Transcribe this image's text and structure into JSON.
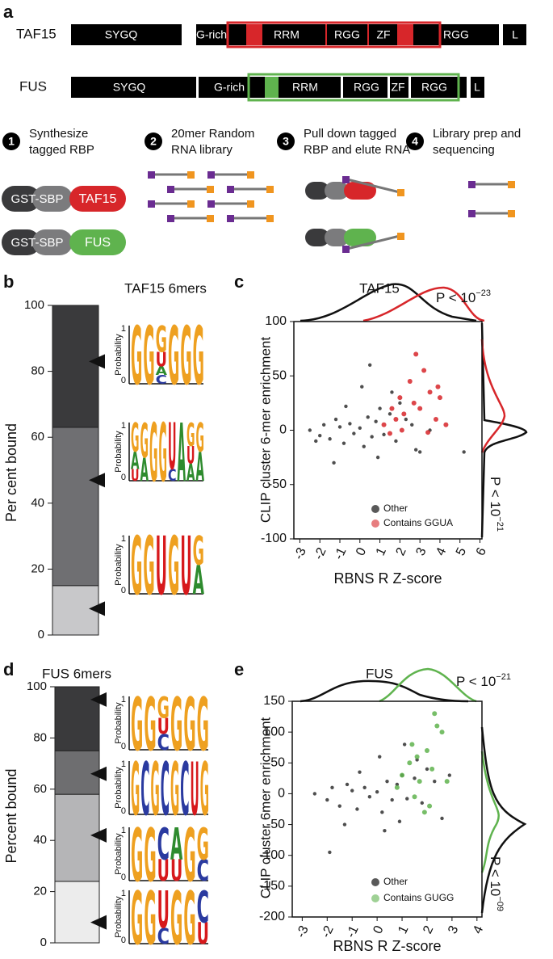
{
  "diagram": {
    "panel": "a",
    "proteins": [
      {
        "name": "TAF15",
        "domains": [
          "SYGQ",
          "G-rich",
          "RRM",
          "RGG",
          "ZF",
          "RGG",
          "L"
        ]
      },
      {
        "name": "FUS",
        "domains": [
          "SYGQ",
          "G-rich",
          "RRM",
          "RGG",
          "ZF",
          "RGG",
          "L"
        ]
      }
    ],
    "steps": [
      {
        "number": "1",
        "lines": [
          "Synthesize",
          "tagged RBP"
        ]
      },
      {
        "number": "2",
        "lines": [
          "20mer Random",
          "RNA library"
        ]
      },
      {
        "number": "3",
        "lines": [
          "Pull down tagged",
          "RBP and elute RNA"
        ]
      },
      {
        "number": "4",
        "lines": [
          "Library prep and",
          "sequencing"
        ]
      }
    ],
    "constructs": {
      "tag": "GST-SBP",
      "proteins": [
        "TAF15",
        "FUS"
      ]
    }
  },
  "logo_axis": {
    "label": "Probability",
    "ticks": [
      0,
      1
    ]
  },
  "chart_data": [
    {
      "type": "stacked_bar",
      "panel": "b",
      "title": "TAF15 6mers",
      "ylabel": "Per cent bound",
      "ylim": [
        0,
        100
      ],
      "yticks": [
        0,
        20,
        40,
        60,
        80,
        100
      ],
      "series": [
        {
          "color": "#c8c8ca",
          "values": [
            15
          ]
        },
        {
          "color": "#6f6f72",
          "values": [
            48
          ]
        },
        {
          "color": "#3a3a3c",
          "values": [
            37
          ]
        }
      ],
      "markers": [
        83,
        47,
        8
      ],
      "logos": [
        [
          [
            {
              "base": "G",
              "p": 1
            }
          ],
          [
            {
              "base": "G",
              "p": 1
            }
          ],
          [
            {
              "base": "G",
              "p": 0.45
            },
            {
              "base": "U",
              "p": 0.25
            },
            {
              "base": "A",
              "p": 0.15
            },
            {
              "base": "C",
              "p": 0.15
            }
          ],
          [
            {
              "base": "G",
              "p": 1
            }
          ],
          [
            {
              "base": "G",
              "p": 1
            }
          ],
          [
            {
              "base": "G",
              "p": 1
            }
          ]
        ],
        [
          [
            {
              "base": "G",
              "p": 0.5
            },
            {
              "base": "A",
              "p": 0.3
            },
            {
              "base": "U",
              "p": 0.2
            }
          ],
          [
            {
              "base": "G",
              "p": 0.6
            },
            {
              "base": "A",
              "p": 0.4
            }
          ],
          [
            {
              "base": "G",
              "p": 1
            }
          ],
          [
            {
              "base": "G",
              "p": 1
            }
          ],
          [
            {
              "base": "U",
              "p": 0.8
            },
            {
              "base": "C",
              "p": 0.2
            }
          ],
          [
            {
              "base": "A",
              "p": 1
            }
          ],
          [
            {
              "base": "G",
              "p": 0.4
            },
            {
              "base": "U",
              "p": 0.3
            },
            {
              "base": "A",
              "p": 0.3
            }
          ],
          [
            {
              "base": "G",
              "p": 0.5
            },
            {
              "base": "A",
              "p": 0.5
            }
          ]
        ],
        [
          [
            {
              "base": "G",
              "p": 1
            }
          ],
          [
            {
              "base": "G",
              "p": 1
            }
          ],
          [
            {
              "base": "U",
              "p": 1
            }
          ],
          [
            {
              "base": "G",
              "p": 1
            }
          ],
          [
            {
              "base": "U",
              "p": 1
            }
          ],
          [
            {
              "base": "G",
              "p": 0.5
            },
            {
              "base": "A",
              "p": 0.5
            }
          ]
        ]
      ]
    },
    {
      "type": "scatter",
      "panel": "c",
      "title": "TAF15",
      "xlabel": "RBNS R Z-score",
      "ylabel": "CLIP cluster 6-mer enrichment",
      "xlim": [
        -3.3,
        6.1
      ],
      "xticks": [
        -3,
        -2,
        -1,
        0,
        1,
        2,
        3,
        4,
        5,
        6
      ],
      "ylim": [
        -100,
        100
      ],
      "yticks": [
        -100,
        -50,
        0,
        50,
        100
      ],
      "series": [
        {
          "name": "Other",
          "color": "#222222",
          "x": [
            -2.5,
            -2,
            -1.8,
            -1.5,
            -1.2,
            -1,
            -0.8,
            -0.5,
            -0.3,
            0,
            0.2,
            0.4,
            0.6,
            0.8,
            1,
            1.2,
            1.5,
            1.8,
            2,
            2.3,
            2.6,
            3,
            3.5,
            -1.3,
            -0.7,
            0.1,
            0.9,
            1.6,
            2.8,
            5.2,
            0.5,
            -2.2
          ],
          "values": [
            0,
            -5,
            5,
            -8,
            10,
            3,
            -12,
            6,
            -3,
            2,
            -15,
            12,
            -6,
            8,
            20,
            -4,
            15,
            -10,
            25,
            10,
            5,
            -20,
            0,
            -30,
            22,
            40,
            -25,
            35,
            -18,
            -20,
            60,
            -10
          ]
        },
        {
          "name": "Contains GGUA",
          "color": "#d7262a",
          "x": [
            1.2,
            1.5,
            1.8,
            2,
            2.2,
            2.5,
            2.7,
            3,
            3.2,
            3.5,
            3.8,
            4,
            4.3,
            2.8,
            3.4,
            2.1,
            1.6,
            3.9
          ],
          "values": [
            5,
            -3,
            10,
            30,
            15,
            45,
            25,
            20,
            55,
            35,
            10,
            30,
            5,
            70,
            -2,
            0,
            20,
            40
          ]
        }
      ],
      "annotations": [
        {
          "text": "P < 10",
          "exponent": "−23"
        },
        {
          "text": "P < 10",
          "exponent": "−21"
        }
      ]
    },
    {
      "type": "stacked_bar",
      "panel": "d",
      "title": "FUS 6mers",
      "ylabel": "Percent bound",
      "ylim": [
        0,
        100
      ],
      "yticks": [
        0,
        20,
        40,
        60,
        80,
        100
      ],
      "series": [
        {
          "color": "#ececec",
          "values": [
            24
          ]
        },
        {
          "color": "#b5b5b7",
          "values": [
            34
          ]
        },
        {
          "color": "#6e6e70",
          "values": [
            17
          ]
        },
        {
          "color": "#3a3a3c",
          "values": [
            25
          ]
        }
      ],
      "markers": [
        95,
        66,
        42,
        8
      ],
      "logos": [
        [
          [
            {
              "base": "G",
              "p": 1
            }
          ],
          [
            {
              "base": "G",
              "p": 1
            }
          ],
          [
            {
              "base": "G",
              "p": 0.4
            },
            {
              "base": "U",
              "p": 0.3
            },
            {
              "base": "C",
              "p": 0.3
            }
          ],
          [
            {
              "base": "G",
              "p": 1
            }
          ],
          [
            {
              "base": "G",
              "p": 1
            }
          ],
          [
            {
              "base": "G",
              "p": 1
            }
          ]
        ],
        [
          [
            {
              "base": "G",
              "p": 1
            }
          ],
          [
            {
              "base": "C",
              "p": 1
            }
          ],
          [
            {
              "base": "G",
              "p": 1
            }
          ],
          [
            {
              "base": "C",
              "p": 1
            }
          ],
          [
            {
              "base": "G",
              "p": 1
            }
          ],
          [
            {
              "base": "C",
              "p": 1
            }
          ],
          [
            {
              "base": "U",
              "p": 1
            }
          ],
          [
            {
              "base": "G",
              "p": 1
            }
          ]
        ],
        [
          [
            {
              "base": "G",
              "p": 1
            }
          ],
          [
            {
              "base": "G",
              "p": 1
            }
          ],
          [
            {
              "base": "C",
              "p": 0.6
            },
            {
              "base": "U",
              "p": 0.4
            }
          ],
          [
            {
              "base": "A",
              "p": 0.6
            },
            {
              "base": "U",
              "p": 0.4
            }
          ],
          [
            {
              "base": "G",
              "p": 1
            }
          ],
          [
            {
              "base": "G",
              "p": 0.6
            },
            {
              "base": "C",
              "p": 0.4
            }
          ]
        ],
        [
          [
            {
              "base": "G",
              "p": 1
            }
          ],
          [
            {
              "base": "G",
              "p": 1
            }
          ],
          [
            {
              "base": "U",
              "p": 0.7
            },
            {
              "base": "C",
              "p": 0.3
            }
          ],
          [
            {
              "base": "G",
              "p": 1
            }
          ],
          [
            {
              "base": "G",
              "p": 1
            }
          ],
          [
            {
              "base": "C",
              "p": 0.6
            },
            {
              "base": "U",
              "p": 0.4
            }
          ]
        ]
      ]
    },
    {
      "type": "scatter",
      "panel": "e",
      "title": "FUS",
      "xlabel": "RBNS R Z-score",
      "ylabel": "CLIP cluster 6mer enrichment",
      "xlim": [
        -3.4,
        4.2
      ],
      "xticks": [
        -3,
        -2,
        -1,
        0,
        1,
        2,
        3,
        4
      ],
      "ylim": [
        -200,
        150
      ],
      "yticks": [
        -200,
        -150,
        -100,
        -50,
        0,
        50,
        100,
        150
      ],
      "series": [
        {
          "name": "Other",
          "color": "#222222",
          "x": [
            -2.5,
            -2,
            -1.8,
            -1.5,
            -1.2,
            -1,
            -0.8,
            -0.5,
            -0.3,
            0,
            0.2,
            0.4,
            0.6,
            0.8,
            1,
            1.2,
            1.5,
            1.8,
            2,
            2.3,
            2.6,
            -1.3,
            -0.7,
            0.1,
            0.9,
            1.6,
            -1.9,
            0.3,
            1.1,
            2.9
          ],
          "values": [
            0,
            -10,
            10,
            -20,
            15,
            5,
            -25,
            10,
            -5,
            3,
            -30,
            20,
            -10,
            15,
            30,
            -8,
            25,
            -15,
            40,
            20,
            -40,
            -50,
            35,
            60,
            -45,
            55,
            -95,
            -60,
            80,
            30
          ]
        },
        {
          "name": "Contains GUGG",
          "color": "#5fb34e",
          "x": [
            0.8,
            1,
            1.3,
            1.5,
            1.7,
            2,
            2.2,
            2.4,
            2.6,
            1.9,
            1.4,
            2.8,
            2.1,
            1.6,
            2.3
          ],
          "values": [
            10,
            30,
            50,
            -5,
            20,
            70,
            40,
            110,
            100,
            -30,
            80,
            20,
            -20,
            60,
            130
          ]
        }
      ],
      "annotations": [
        {
          "text": "P < 10",
          "exponent": "−21"
        },
        {
          "text": "P < 10",
          "exponent": "−09"
        }
      ]
    }
  ]
}
